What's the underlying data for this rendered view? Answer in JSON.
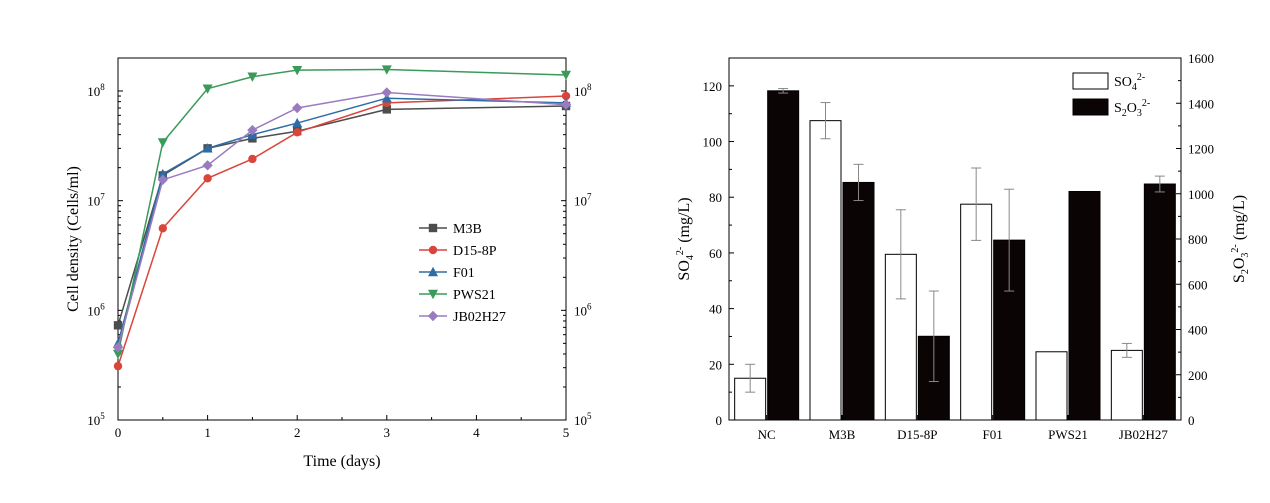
{
  "chart_data": [
    {
      "type": "line",
      "xlabel": "Time (days)",
      "ylabel": "Cell density (Cells/ml)",
      "yscale": "log",
      "xlim": [
        0,
        5
      ],
      "ylim": [
        100000,
        200000000
      ],
      "xticks": [
        "0",
        "1",
        "2",
        "3",
        "4",
        "5"
      ],
      "yticks": [
        "10",
        "10",
        "10",
        "10"
      ],
      "ytick_exponents": [
        "5",
        "6",
        "7",
        "8"
      ],
      "legend_position": "right",
      "series": [
        {
          "name": "M3B",
          "color": "#4d4d4d",
          "marker": "square",
          "x": [
            0,
            0.5,
            1,
            1.5,
            2,
            3,
            5
          ],
          "y": [
            730000,
            17000000,
            30000000,
            37000000,
            43000000,
            68000000,
            73000000
          ]
        },
        {
          "name": "D15-8P",
          "color": "#d9453b",
          "marker": "circle",
          "x": [
            0,
            0.5,
            1,
            1.5,
            2,
            3,
            5
          ],
          "y": [
            310000,
            5600000,
            16000000,
            24000000,
            42000000,
            78000000,
            90000000
          ]
        },
        {
          "name": "F01",
          "color": "#2e6da4",
          "marker": "triangle-up",
          "x": [
            0,
            0.5,
            1,
            1.5,
            2,
            3,
            5
          ],
          "y": [
            500000,
            17500000,
            30000000,
            40000000,
            51000000,
            86000000,
            78000000
          ]
        },
        {
          "name": "PWS21",
          "color": "#3a9a5a",
          "marker": "triangle-down",
          "x": [
            0,
            0.5,
            1,
            1.5,
            2,
            3,
            5
          ],
          "y": [
            400000,
            34000000,
            105000000,
            135000000,
            155000000,
            157000000,
            140000000
          ]
        },
        {
          "name": "JB02H27",
          "color": "#9b7bbf",
          "marker": "diamond",
          "x": [
            0,
            0.5,
            1,
            1.5,
            2,
            3,
            5
          ],
          "y": [
            460000,
            15500000,
            21000000,
            44000000,
            70000000,
            97000000,
            75000000
          ]
        }
      ]
    },
    {
      "type": "bar",
      "categories": [
        "NC",
        "M3B",
        "D15-8P",
        "F01",
        "PWS21",
        "JB02H27"
      ],
      "ylabel_left": {
        "base": "SO",
        "sub": "4",
        "sup": "2-",
        "suffix": " (mg/L)"
      },
      "ylabel_right": {
        "base": "S",
        "sub1": "2",
        "mid": "O",
        "sub2": "3",
        "sup": "2-",
        "suffix": " (mg/L)"
      },
      "ylim_left": [
        0,
        130
      ],
      "ylim_right": [
        0,
        1600
      ],
      "yticks_left": [
        "0",
        "20",
        "40",
        "60",
        "80",
        "100",
        "120"
      ],
      "yticks_right": [
        "0",
        "200",
        "400",
        "600",
        "800",
        "1000",
        "1200",
        "1400",
        "1600"
      ],
      "legend_position": "top-right",
      "series": [
        {
          "name": "SO4 2-",
          "legend": {
            "base": "SO",
            "sub": "4",
            "sup": "2-"
          },
          "color": "#ffffff",
          "axis": "left",
          "values": [
            15,
            107.5,
            59.5,
            77.5,
            24.5,
            25
          ],
          "errors": [
            5,
            6.5,
            16,
            13,
            0,
            2.5
          ]
        },
        {
          "name": "S2O3 2-",
          "legend": {
            "base": "S",
            "sub1": "2",
            "mid": "O",
            "sub2": "3",
            "sup": "2-"
          },
          "color": "#0a0404",
          "axis": "right",
          "values": [
            1455,
            1050,
            370,
            795,
            1010,
            1043
          ],
          "errors": [
            10,
            80,
            200,
            225,
            0,
            35
          ]
        }
      ]
    }
  ]
}
